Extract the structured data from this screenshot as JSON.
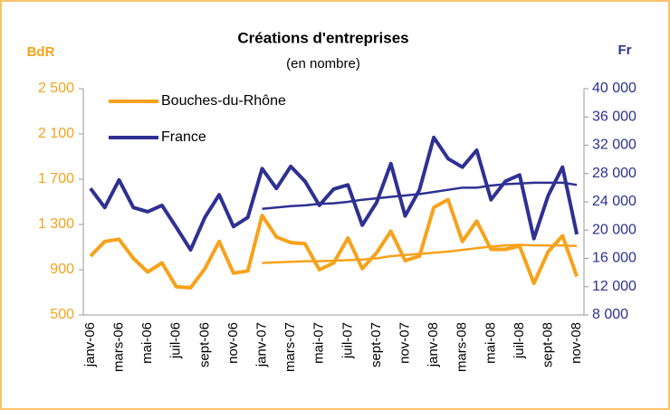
{
  "chart_data": {
    "type": "line",
    "title": "Créations d'entreprises",
    "subtitle": "(en nombre)",
    "ylabel": "BdR",
    "y2label": "Fr",
    "categories": [
      "janv-06",
      null,
      "mars-06",
      null,
      "mai-06",
      null,
      "juil-06",
      null,
      "sept-06",
      null,
      "nov-06",
      null,
      "janv-07",
      null,
      "mars-07",
      null,
      "mai-07",
      null,
      "juil-07",
      null,
      "sept-07",
      null,
      "nov-07",
      null,
      "janv-08",
      null,
      "mars-08",
      null,
      "mai-08",
      null,
      "juil-08",
      null,
      "sept-08",
      null,
      "nov-08"
    ],
    "series": [
      {
        "name": "Bouches-du-Rhône",
        "color": "#f7a21b",
        "axis": "y",
        "values": [
          1020,
          1150,
          1170,
          1000,
          880,
          960,
          750,
          740,
          910,
          1150,
          870,
          890,
          1380,
          1190,
          1140,
          1130,
          900,
          960,
          1180,
          910,
          1050,
          1240,
          980,
          1020,
          1450,
          1520,
          1150,
          1330,
          1080,
          1080,
          1110,
          780,
          1060,
          1200,
          840
        ]
      },
      {
        "name": "France",
        "color": "#2e3192",
        "axis": "y2",
        "values": [
          25900,
          23200,
          27100,
          23200,
          22600,
          23500,
          20400,
          17200,
          21800,
          25000,
          20500,
          21800,
          28700,
          25900,
          29000,
          26900,
          23500,
          25800,
          26400,
          20700,
          23900,
          29400,
          22000,
          25700,
          33100,
          30100,
          28900,
          31300,
          24300,
          26900,
          27800,
          18800,
          24900,
          28900,
          19400
        ]
      },
      {
        "color": "#f7a21b",
        "axis": "y",
        "values": [
          null,
          null,
          null,
          null,
          null,
          null,
          null,
          null,
          null,
          null,
          null,
          null,
          960,
          965,
          970,
          975,
          975,
          980,
          985,
          990,
          1000,
          1020,
          1030,
          1040,
          1050,
          1060,
          1075,
          1090,
          1105,
          1115,
          1120,
          1115,
          1115,
          1115,
          1110
        ]
      },
      {
        "color": "#2e3192",
        "axis": "y2",
        "values": [
          null,
          null,
          null,
          null,
          null,
          null,
          null,
          null,
          null,
          null,
          null,
          null,
          23000,
          23200,
          23400,
          23500,
          23700,
          23800,
          24000,
          24300,
          24500,
          24700,
          24900,
          25100,
          25400,
          25700,
          26000,
          26000,
          26300,
          26500,
          26600,
          26700,
          26700,
          26700,
          26400
        ]
      }
    ],
    "ylim": [
      500,
      2500
    ],
    "yticks": [
      500,
      900,
      {
        "value": 1300,
        "label": "1 300"
      },
      {
        "value": 1700,
        "label": "1 700"
      },
      {
        "value": 2100,
        "label": "2 100"
      },
      {
        "value": 2500,
        "label": "2 500"
      }
    ],
    "y2lim": [
      8000,
      40000
    ],
    "y2ticks": [
      {
        "value": 8000,
        "label": "8 000"
      },
      {
        "value": 12000,
        "label": "12 000"
      },
      {
        "value": 16000,
        "label": "16 000"
      },
      {
        "value": 20000,
        "label": "20 000"
      },
      {
        "value": 24000,
        "label": "24 000"
      },
      {
        "value": 28000,
        "label": "28 000"
      },
      {
        "value": 32000,
        "label": "32 000"
      },
      {
        "value": 36000,
        "label": "36 000"
      },
      {
        "value": 40000,
        "label": "40 000"
      }
    ],
    "legend": "top-left"
  }
}
